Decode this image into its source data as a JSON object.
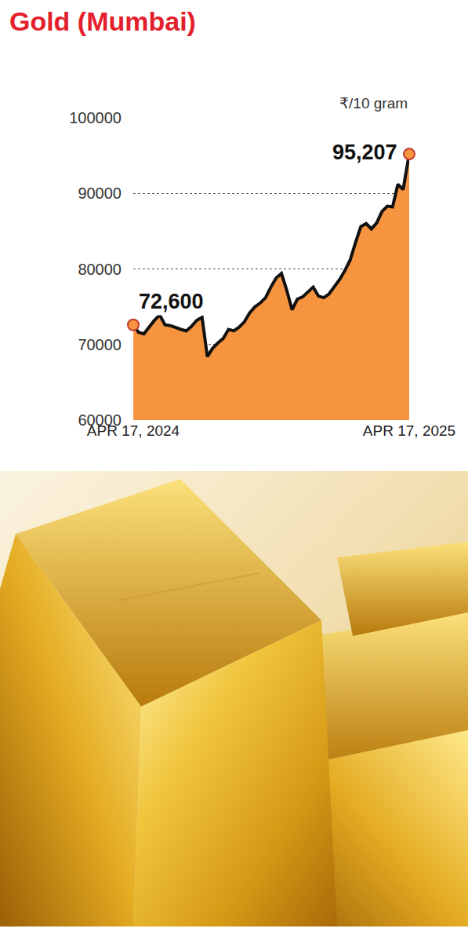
{
  "chart_data": {
    "type": "area",
    "title": "Gold (Mumbai)",
    "ylabel": "₹/10 gram",
    "x": [
      "2024-04-17",
      "2024-04-24",
      "2024-05-01",
      "2024-05-08",
      "2024-05-15",
      "2024-05-22",
      "2024-05-29",
      "2024-06-05",
      "2024-06-12",
      "2024-06-19",
      "2024-06-26",
      "2024-07-03",
      "2024-07-10",
      "2024-07-17",
      "2024-07-24",
      "2024-07-31",
      "2024-08-07",
      "2024-08-14",
      "2024-08-21",
      "2024-08-28",
      "2024-09-04",
      "2024-09-11",
      "2024-09-18",
      "2024-09-25",
      "2024-10-02",
      "2024-10-09",
      "2024-10-16",
      "2024-10-23",
      "2024-10-30",
      "2024-11-06",
      "2024-11-13",
      "2024-11-20",
      "2024-11-27",
      "2024-12-04",
      "2024-12-11",
      "2024-12-18",
      "2024-12-25",
      "2025-01-01",
      "2025-01-08",
      "2025-01-15",
      "2025-01-22",
      "2025-01-29",
      "2025-02-05",
      "2025-02-12",
      "2025-02-19",
      "2025-02-26",
      "2025-03-05",
      "2025-03-12",
      "2025-03-19",
      "2025-03-26",
      "2025-04-02",
      "2025-04-09",
      "2025-04-17"
    ],
    "values": [
      72600,
      71600,
      71400,
      72300,
      73200,
      73900,
      72600,
      72500,
      72200,
      72000,
      71800,
      72400,
      73200,
      73600,
      68400,
      69500,
      70200,
      70800,
      72000,
      71800,
      72300,
      73000,
      74200,
      75000,
      75500,
      76200,
      77600,
      78800,
      79400,
      77200,
      74600,
      76000,
      76300,
      77000,
      77600,
      76400,
      76200,
      76700,
      77600,
      78600,
      79800,
      81200,
      83500,
      85600,
      86000,
      85300,
      86100,
      87600,
      88300,
      88200,
      91200,
      90500,
      95207
    ],
    "color": "#f7943f",
    "xlim": [
      "2024-04-17",
      "2025-04-17"
    ],
    "xticks": [
      {
        "value": "2024-04-17",
        "label": "APR 17, 2024"
      },
      {
        "value": "2025-04-17",
        "label": "APR 17, 2025"
      }
    ],
    "ylim": [
      60000,
      100000
    ],
    "yticks": [
      60000,
      70000,
      80000,
      90000,
      100000
    ],
    "grid": true,
    "marker": "circle",
    "annotations": [
      {
        "x": "2024-04-17",
        "y": 72600,
        "text": "72,600"
      },
      {
        "x": "2025-04-17",
        "y": 95207,
        "text": "95,207"
      }
    ]
  }
}
